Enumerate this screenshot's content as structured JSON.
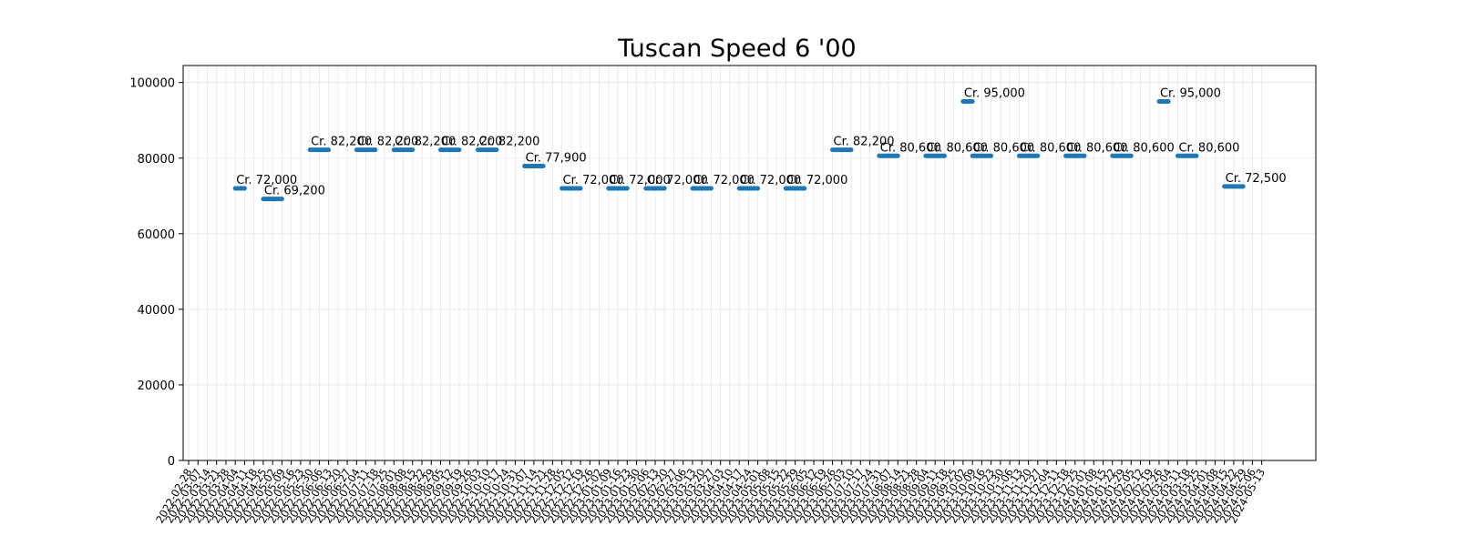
{
  "chart_data": {
    "type": "line",
    "title": "Tuscan Speed 6 '00",
    "xlabel": "",
    "ylabel": "",
    "ylim": [
      0,
      104500
    ],
    "yticks": [
      0,
      20000,
      40000,
      60000,
      80000,
      100000
    ],
    "grid": true,
    "legend": "none",
    "color": "#1f77b4",
    "x_dates": [
      "2022-02-28",
      "2022-03-07",
      "2022-03-14",
      "2022-03-21",
      "2022-03-28",
      "2022-04-04",
      "2022-04-11",
      "2022-04-18",
      "2022-04-25",
      "2022-05-02",
      "2022-05-09",
      "2022-05-16",
      "2022-05-23",
      "2022-05-30",
      "2022-06-06",
      "2022-06-13",
      "2022-06-20",
      "2022-06-27",
      "2022-07-04",
      "2022-07-11",
      "2022-07-18",
      "2022-07-25",
      "2022-08-01",
      "2022-08-08",
      "2022-08-15",
      "2022-08-22",
      "2022-08-29",
      "2022-09-05",
      "2022-09-12",
      "2022-09-19",
      "2022-09-26",
      "2022-10-03",
      "2022-10-10",
      "2022-10-17",
      "2022-10-24",
      "2022-10-31",
      "2022-11-07",
      "2022-11-14",
      "2022-11-21",
      "2022-11-28",
      "2022-12-05",
      "2022-12-12",
      "2022-12-19",
      "2022-12-26",
      "2023-01-02",
      "2023-01-09",
      "2023-01-16",
      "2023-01-23",
      "2023-01-30",
      "2023-02-06",
      "2023-02-13",
      "2023-02-20",
      "2023-02-27",
      "2023-03-06",
      "2023-03-13",
      "2023-03-20",
      "2023-03-27",
      "2023-04-03",
      "2023-04-10",
      "2023-04-17",
      "2023-04-24",
      "2023-05-01",
      "2023-05-08",
      "2023-05-15",
      "2023-05-22",
      "2023-05-29",
      "2023-06-05",
      "2023-06-12",
      "2023-06-19",
      "2023-06-26",
      "2023-07-03",
      "2023-07-10",
      "2023-07-17",
      "2023-07-24",
      "2023-07-31",
      "2023-08-07",
      "2023-08-14",
      "2023-08-21",
      "2023-08-28",
      "2023-09-04",
      "2023-09-11",
      "2023-09-18",
      "2023-09-25",
      "2023-10-02",
      "2023-10-09",
      "2023-10-16",
      "2023-10-23",
      "2023-10-30",
      "2023-11-06",
      "2023-11-13",
      "2023-11-20",
      "2023-11-27",
      "2023-12-04",
      "2023-12-11",
      "2023-12-18",
      "2023-12-25",
      "2024-01-01",
      "2024-01-08",
      "2024-01-15",
      "2024-01-22",
      "2024-01-29",
      "2024-02-05",
      "2024-02-12",
      "2024-02-19",
      "2024-02-26",
      "2024-03-04",
      "2024-03-11",
      "2024-03-18",
      "2024-03-25",
      "2024-04-01",
      "2024-04-08",
      "2024-04-15",
      "2024-04-22",
      "2024-04-29",
      "2024-05-06",
      "2024-05-13"
    ],
    "series": [
      {
        "segments": [
          {
            "start": "2022-04-04",
            "end": "2022-04-11",
            "value": 72000,
            "label": "Cr. 72,000"
          },
          {
            "start": "2022-04-25",
            "end": "2022-05-09",
            "value": 69200,
            "label": "Cr. 69,200"
          },
          {
            "start": "2022-05-30",
            "end": "2022-06-13",
            "value": 82200,
            "label": "Cr. 82,200"
          },
          {
            "start": "2022-07-04",
            "end": "2022-07-18",
            "value": 82200,
            "label": "Cr. 82,200"
          },
          {
            "start": "2022-08-01",
            "end": "2022-08-15",
            "value": 82200,
            "label": "Cr. 82,200"
          },
          {
            "start": "2022-09-05",
            "end": "2022-09-19",
            "value": 82200,
            "label": "Cr. 82,200"
          },
          {
            "start": "2022-10-03",
            "end": "2022-10-17",
            "value": 82200,
            "label": "Cr. 82,200"
          },
          {
            "start": "2022-11-07",
            "end": "2022-11-21",
            "value": 77900,
            "label": "Cr. 77,900"
          },
          {
            "start": "2022-12-05",
            "end": "2022-12-19",
            "value": 72000,
            "label": "Cr. 72,000"
          },
          {
            "start": "2023-01-09",
            "end": "2023-01-23",
            "value": 72000,
            "label": "Cr. 72,000"
          },
          {
            "start": "2023-02-06",
            "end": "2023-02-20",
            "value": 72000,
            "label": "Cr. 72,000"
          },
          {
            "start": "2023-03-13",
            "end": "2023-03-27",
            "value": 72000,
            "label": "Cr. 72,000"
          },
          {
            "start": "2023-04-17",
            "end": "2023-05-01",
            "value": 72000,
            "label": "Cr. 72,000"
          },
          {
            "start": "2023-05-22",
            "end": "2023-06-05",
            "value": 72000,
            "label": "Cr. 72,000"
          },
          {
            "start": "2023-06-26",
            "end": "2023-07-10",
            "value": 82200,
            "label": "Cr. 82,200"
          },
          {
            "start": "2023-07-31",
            "end": "2023-08-14",
            "value": 80600,
            "label": "Cr. 80,600"
          },
          {
            "start": "2023-09-04",
            "end": "2023-09-18",
            "value": 80600,
            "label": "Cr. 80,600"
          },
          {
            "start": "2023-10-02",
            "end": "2023-10-09",
            "value": 95000,
            "label": "Cr. 95,000"
          },
          {
            "start": "2023-10-09",
            "end": "2023-10-23",
            "value": 80600,
            "label": "Cr. 80,600"
          },
          {
            "start": "2023-11-13",
            "end": "2023-11-27",
            "value": 80600,
            "label": "Cr. 80,600"
          },
          {
            "start": "2023-12-18",
            "end": "2024-01-01",
            "value": 80600,
            "label": "Cr. 80,600"
          },
          {
            "start": "2024-01-22",
            "end": "2024-02-05",
            "value": 80600,
            "label": "Cr. 80,600"
          },
          {
            "start": "2024-02-26",
            "end": "2024-03-04",
            "value": 95000,
            "label": "Cr. 95,000"
          },
          {
            "start": "2024-03-11",
            "end": "2024-03-25",
            "value": 80600,
            "label": "Cr. 80,600"
          },
          {
            "start": "2024-04-15",
            "end": "2024-04-29",
            "value": 72500,
            "label": "Cr. 72,500"
          }
        ]
      }
    ]
  }
}
